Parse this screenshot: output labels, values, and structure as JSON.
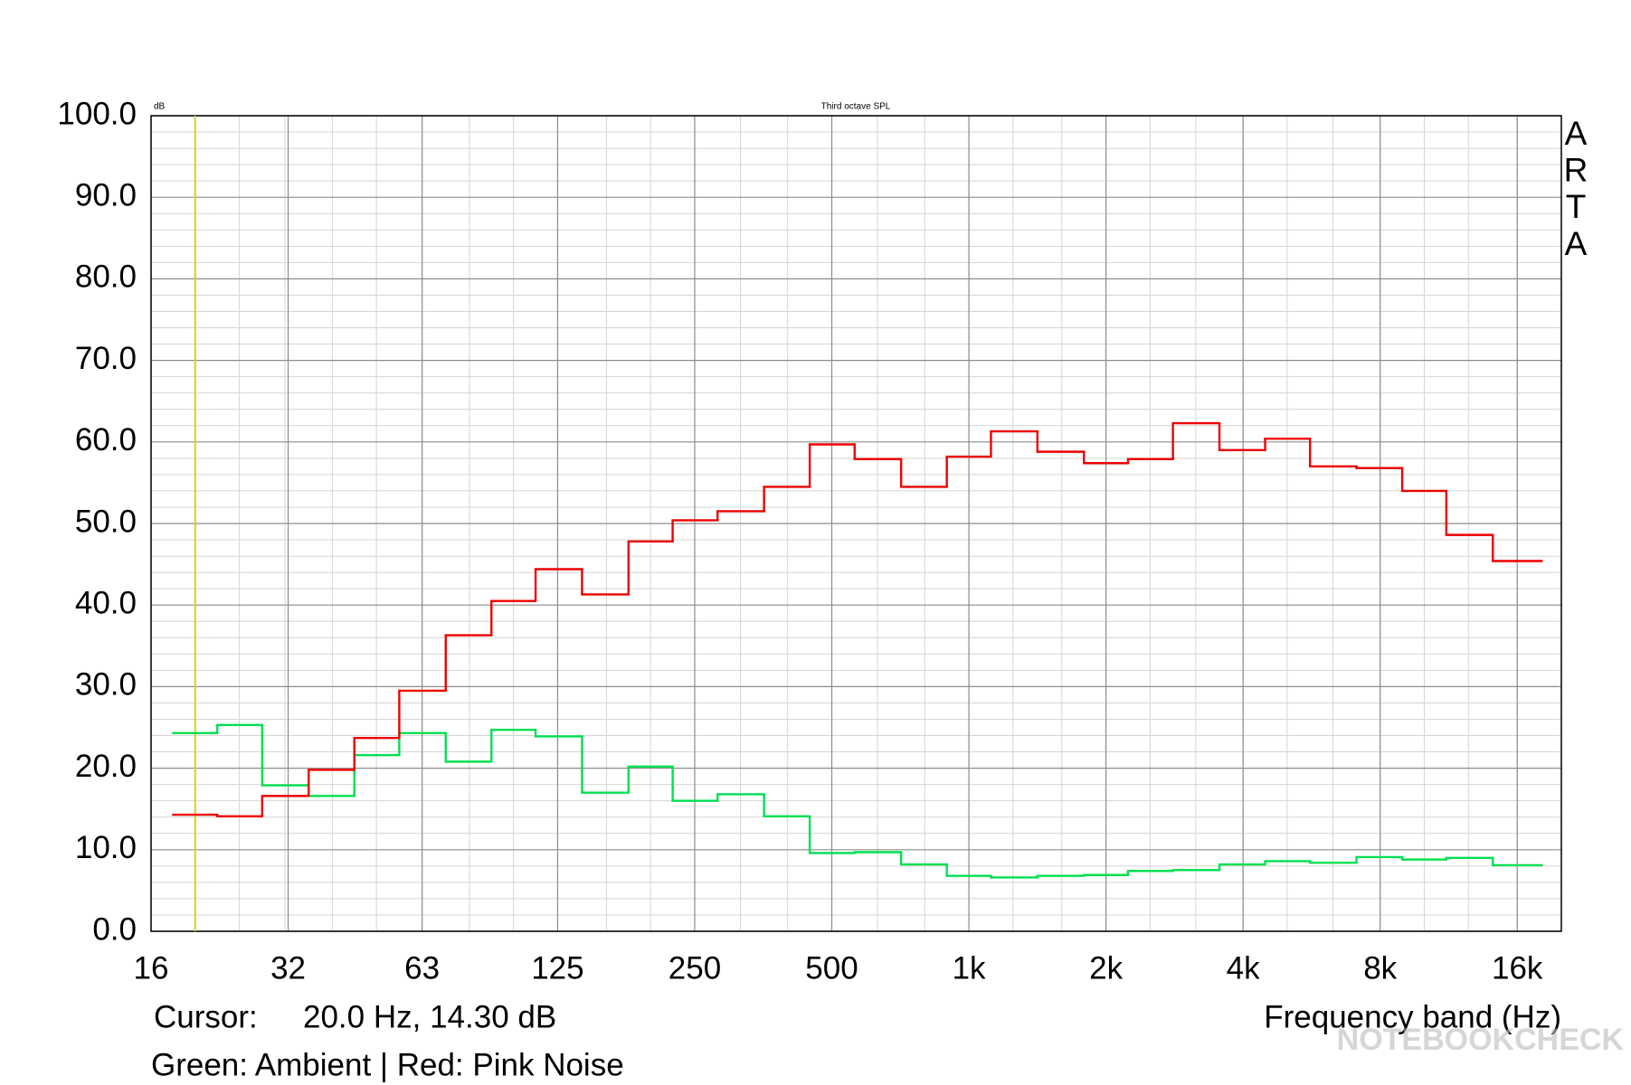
{
  "chart_data": {
    "type": "step",
    "title": "Third octave SPL",
    "y_unit": "dB",
    "brand_letters": [
      "A",
      "R",
      "T",
      "A"
    ],
    "x_label": "Frequency band (Hz)",
    "caption": "Green: Ambient | Red: Pink Noise",
    "watermark": "NOTEBOOKCHECK",
    "cursor": {
      "label": "Cursor:",
      "value": 20,
      "value_label": "20.0 Hz, 14.30 dB",
      "color": "#d8d020"
    },
    "log_x": true,
    "grid": true,
    "x": [
      20,
      25,
      31.5,
      40,
      50,
      63,
      80,
      100,
      125,
      160,
      200,
      250,
      315,
      400,
      500,
      630,
      800,
      1000,
      1250,
      1600,
      2000,
      2500,
      3150,
      4000,
      5000,
      6300,
      8000,
      10000,
      12500,
      16000
    ],
    "series": [
      {
        "color": "#00e050",
        "values": [
          24.3,
          25.3,
          17.9,
          16.6,
          21.6,
          24.3,
          20.8,
          24.7,
          23.9,
          17.0,
          20.2,
          16.0,
          16.8,
          14.1,
          9.6,
          9.7,
          8.2,
          6.8,
          6.6,
          6.8,
          6.9,
          7.4,
          7.5,
          8.2,
          8.6,
          8.4,
          9.1,
          8.8,
          9.0,
          8.1
        ]
      },
      {
        "color": "#ee0000",
        "values": [
          14.3,
          14.1,
          16.6,
          19.8,
          23.7,
          29.5,
          36.3,
          40.5,
          44.4,
          41.3,
          47.8,
          50.4,
          51.5,
          54.5,
          59.7,
          57.9,
          54.5,
          58.2,
          61.3,
          58.8,
          57.4,
          57.9,
          62.3,
          59.0,
          60.4,
          57.0,
          56.8,
          54.0,
          48.6,
          45.4
        ]
      }
    ],
    "xlim": [
      16,
      20000
    ],
    "xticks": [
      16,
      32,
      63,
      125,
      250,
      500,
      {
        "value": 1000,
        "label": "1k"
      },
      {
        "value": 2000,
        "label": "2k"
      },
      {
        "value": 4000,
        "label": "4k"
      },
      {
        "value": 8000,
        "label": "8k"
      },
      {
        "value": 16000,
        "label": "16k"
      }
    ],
    "ylim": [
      0,
      100
    ],
    "yticks": [
      {
        "value": 0,
        "label": "0.0"
      },
      {
        "value": 10,
        "label": "10.0"
      },
      {
        "value": 20,
        "label": "20.0"
      },
      {
        "value": 30,
        "label": "30.0"
      },
      {
        "value": 40,
        "label": "40.0"
      },
      {
        "value": 50,
        "label": "50.0"
      },
      {
        "value": 60,
        "label": "60.0"
      },
      {
        "value": 70,
        "label": "70.0"
      },
      {
        "value": 80,
        "label": "80.0"
      },
      {
        "value": 90,
        "label": "90.0"
      },
      {
        "value": 100,
        "label": "100.0"
      }
    ]
  }
}
